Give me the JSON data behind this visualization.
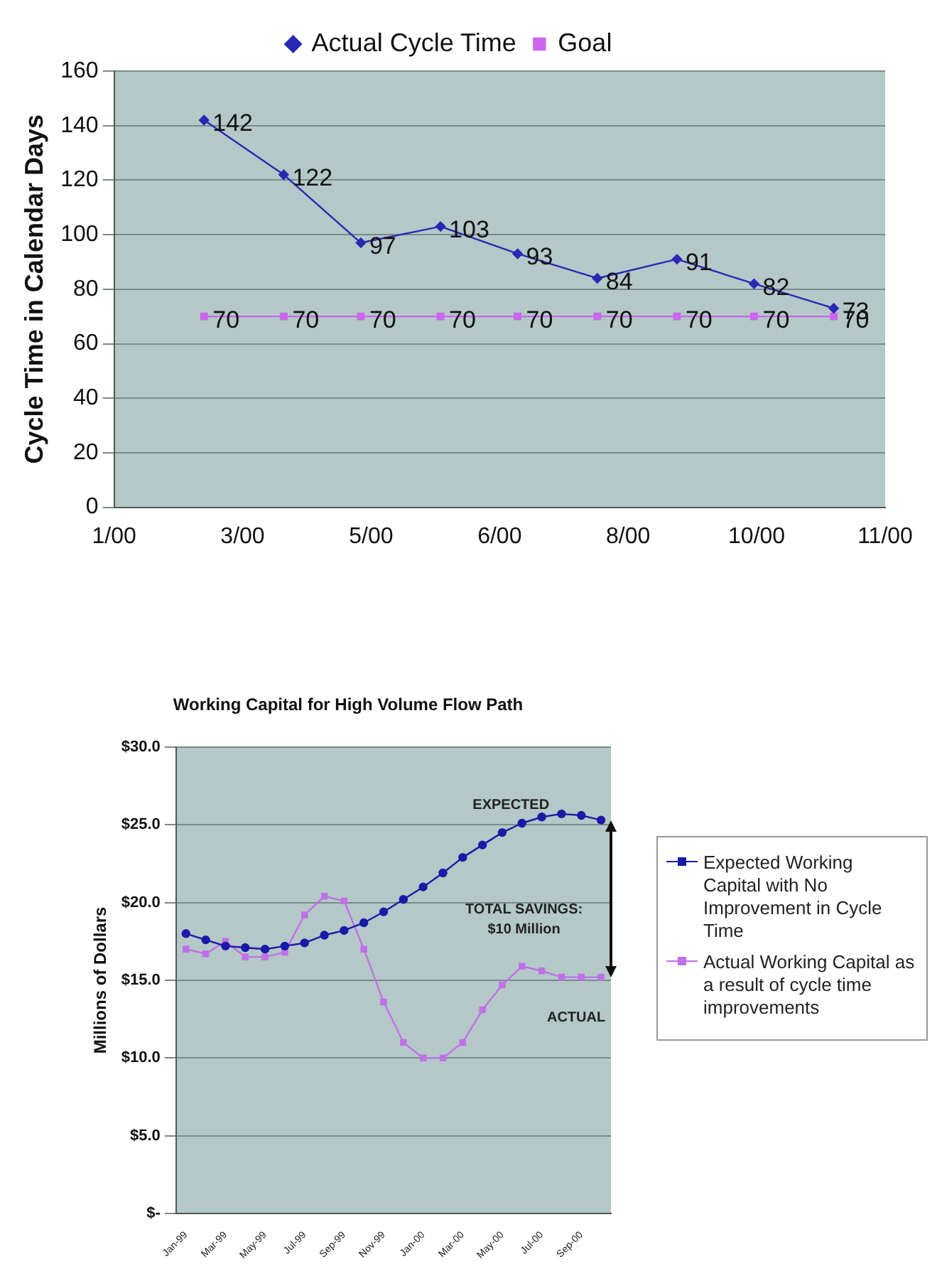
{
  "chart_data": [
    {
      "type": "line",
      "ylabel": "Cycle Time in Calendar Days",
      "x": [
        "2000-03-01",
        "2000-04-01",
        "2000-05-01",
        "2000-06-01",
        "2000-07-01",
        "2000-08-01",
        "2000-09-01",
        "2000-10-01",
        "2000-11-01"
      ],
      "xlim": [
        "2000-01-26",
        "2000-11-21"
      ],
      "xticks": [
        {
          "value": "2000-01-26",
          "label": "1/00"
        },
        {
          "value": "2000-03-16",
          "label": "3/00"
        },
        {
          "value": "2000-05-05",
          "label": "5/00"
        },
        {
          "value": "2000-06-24",
          "label": "6/00"
        },
        {
          "value": "2000-08-13",
          "label": "8/00"
        },
        {
          "value": "2000-10-02",
          "label": "10/00"
        },
        {
          "value": "2000-11-21",
          "label": "11/00"
        }
      ],
      "ylim": [
        0,
        160
      ],
      "yticks": [
        0,
        20,
        40,
        60,
        80,
        100,
        120,
        140,
        160
      ],
      "series": [
        {
          "name": "Actual Cycle Time",
          "color": "#2828b4",
          "marker": "diamond",
          "values": [
            142,
            122,
            97,
            103,
            93,
            84,
            91,
            82,
            73
          ]
        },
        {
          "name": "Goal",
          "color": "#cc66ee",
          "marker": "square",
          "values": [
            70,
            70,
            70,
            70,
            70,
            70,
            70,
            70,
            70
          ]
        }
      ],
      "data_labels": true,
      "grid": "y",
      "legend": "top"
    },
    {
      "type": "line",
      "title": "Working Capital for High Volume Flow Path",
      "ylabel": "Millions of Dollars",
      "categories": [
        "Jan-99",
        null,
        "Mar-99",
        null,
        "May-99",
        null,
        "Jul-99",
        null,
        "Sep-99",
        null,
        "Nov-99",
        null,
        "Jan-00",
        null,
        "Mar-00",
        null,
        "May-00",
        null,
        "Jul-00",
        null,
        "Sep-00",
        null
      ],
      "ylim": [
        0,
        30
      ],
      "yticks": [
        {
          "value": 0,
          "label": "$-"
        },
        {
          "value": 5,
          "label": "$5.0"
        },
        {
          "value": 10,
          "label": "$10.0"
        },
        {
          "value": 15,
          "label": "$15.0"
        },
        {
          "value": 20,
          "label": "$20.0"
        },
        {
          "value": 25,
          "label": "$25.0"
        },
        {
          "value": 30,
          "label": "$30.0"
        }
      ],
      "series": [
        {
          "name": "Expected Working Capital with No Improvement in Cycle Time",
          "color": "#1a1aa8",
          "marker": "circle",
          "values": [
            18.0,
            17.6,
            17.2,
            17.1,
            17.0,
            17.2,
            17.4,
            17.9,
            18.2,
            18.7,
            19.4,
            20.2,
            21.0,
            21.9,
            22.9,
            23.7,
            24.5,
            25.1,
            25.5,
            25.7,
            25.6,
            25.3
          ]
        },
        {
          "name": "Actual Working Capital as a result of cycle time improvements",
          "color": "#c070e8",
          "marker": "square",
          "values": [
            17.0,
            16.7,
            17.5,
            16.5,
            16.5,
            16.8,
            19.2,
            20.4,
            20.1,
            17.0,
            13.6,
            11.0,
            10.0,
            10.0,
            11.0,
            13.1,
            14.7,
            15.9,
            15.6,
            15.2,
            15.2,
            15.2
          ]
        }
      ],
      "annotations": [
        "EXPECTED",
        "TOTAL SAVINGS:\n$10 Million",
        "ACTUAL"
      ],
      "grid": "y",
      "legend": "right"
    }
  ]
}
